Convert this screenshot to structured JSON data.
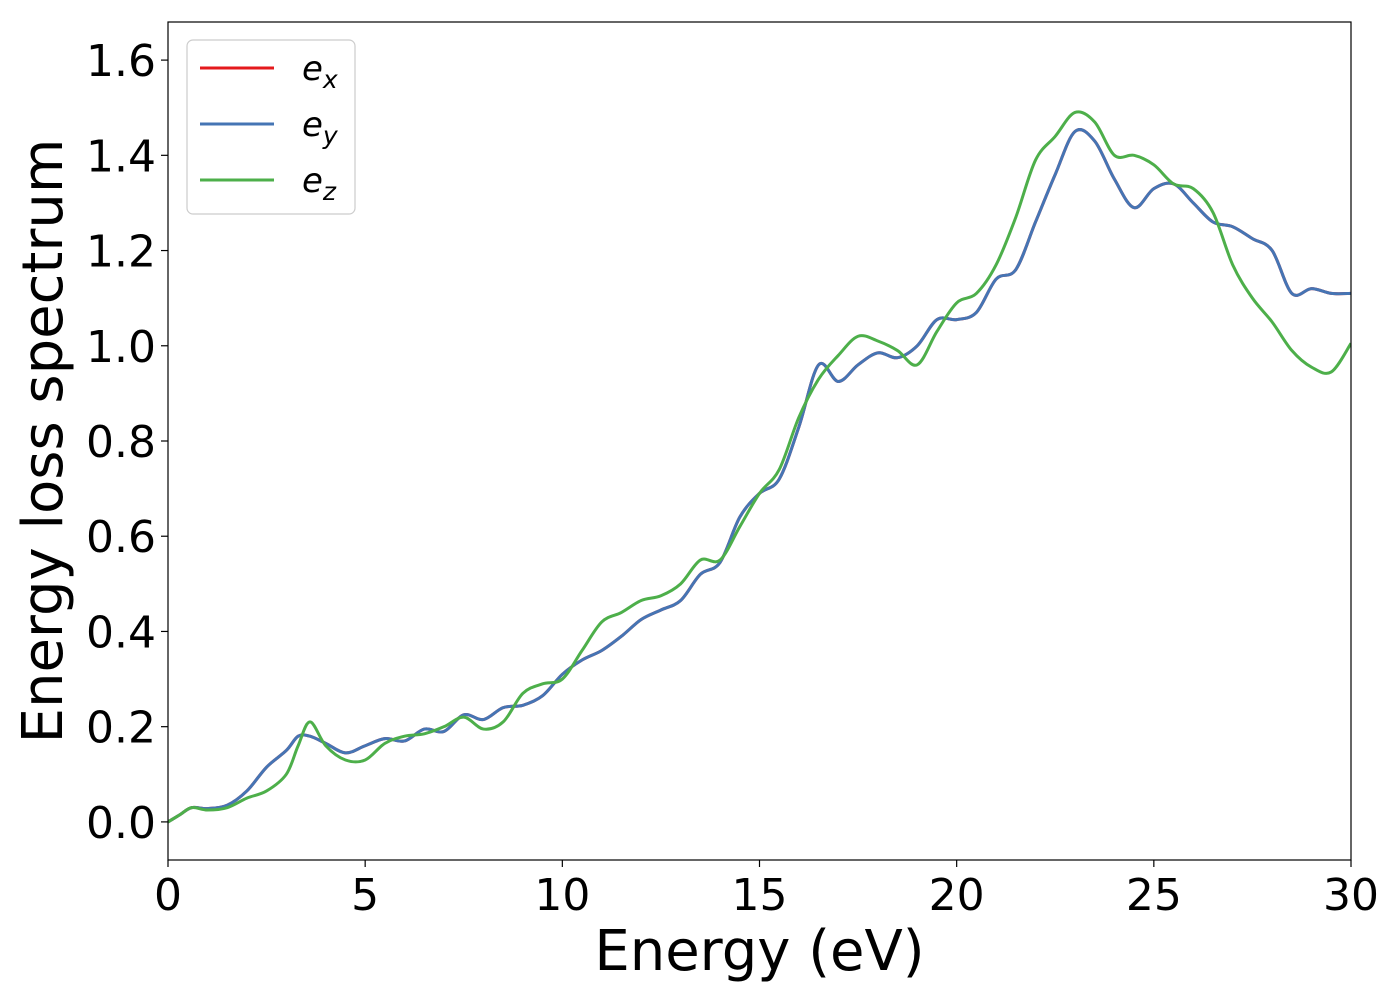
{
  "chart_data": {
    "type": "line",
    "title": "",
    "xlabel": "Energy (eV)",
    "ylabel": "Energy loss spectrum",
    "xlim": [
      0,
      30
    ],
    "ylim": [
      -0.08,
      1.68
    ],
    "xticks": [
      "0",
      "5",
      "10",
      "15",
      "20",
      "25",
      "30"
    ],
    "yticks": [
      "0.0",
      "0.2",
      "0.4",
      "0.6",
      "0.8",
      "1.0",
      "1.2",
      "1.4",
      "1.6"
    ],
    "grid": false,
    "legend_position": "top-left",
    "series": [
      {
        "name": "e_x",
        "legend_base": "e",
        "legend_sub": "x",
        "color": "#e41a1c",
        "x": [
          0,
          0.3,
          0.6,
          1.0,
          1.5,
          2.0,
          2.5,
          3.0,
          3.3,
          3.6,
          4.0,
          4.5,
          5.0,
          5.5,
          6.0,
          6.5,
          7.0,
          7.5,
          8.0,
          8.5,
          9.0,
          9.5,
          10.0,
          10.5,
          11.0,
          11.5,
          12.0,
          12.5,
          13.0,
          13.5,
          14.0,
          14.5,
          15.0,
          15.5,
          16.0,
          16.5,
          17.0,
          17.5,
          18.0,
          18.5,
          19.0,
          19.5,
          20.0,
          20.5,
          21.0,
          21.5,
          22.0,
          22.5,
          23.0,
          23.5,
          24.0,
          24.5,
          25.0,
          25.5,
          26.0,
          26.5,
          27.0,
          27.5,
          28.0,
          28.5,
          29.0,
          29.5,
          30.0
        ],
        "y": [
          0.0,
          0.015,
          0.03,
          0.028,
          0.035,
          0.065,
          0.115,
          0.15,
          0.18,
          0.18,
          0.165,
          0.145,
          0.16,
          0.175,
          0.17,
          0.195,
          0.19,
          0.225,
          0.215,
          0.24,
          0.245,
          0.265,
          0.31,
          0.34,
          0.36,
          0.39,
          0.425,
          0.445,
          0.465,
          0.52,
          0.545,
          0.64,
          0.69,
          0.72,
          0.83,
          0.96,
          0.925,
          0.96,
          0.985,
          0.975,
          1.0,
          1.055,
          1.055,
          1.07,
          1.14,
          1.16,
          1.26,
          1.36,
          1.45,
          1.43,
          1.35,
          1.29,
          1.33,
          1.34,
          1.3,
          1.26,
          1.25,
          1.225,
          1.2,
          1.11,
          1.12,
          1.11,
          1.11
        ]
      },
      {
        "name": "e_y",
        "legend_base": "e",
        "legend_sub": "y",
        "color": "#4575b4",
        "x": [
          0,
          0.3,
          0.6,
          1.0,
          1.5,
          2.0,
          2.5,
          3.0,
          3.3,
          3.6,
          4.0,
          4.5,
          5.0,
          5.5,
          6.0,
          6.5,
          7.0,
          7.5,
          8.0,
          8.5,
          9.0,
          9.5,
          10.0,
          10.5,
          11.0,
          11.5,
          12.0,
          12.5,
          13.0,
          13.5,
          14.0,
          14.5,
          15.0,
          15.5,
          16.0,
          16.5,
          17.0,
          17.5,
          18.0,
          18.5,
          19.0,
          19.5,
          20.0,
          20.5,
          21.0,
          21.5,
          22.0,
          22.5,
          23.0,
          23.5,
          24.0,
          24.5,
          25.0,
          25.5,
          26.0,
          26.5,
          27.0,
          27.5,
          28.0,
          28.5,
          29.0,
          29.5,
          30.0
        ],
        "y": [
          0.0,
          0.015,
          0.03,
          0.028,
          0.035,
          0.065,
          0.115,
          0.15,
          0.18,
          0.18,
          0.165,
          0.145,
          0.16,
          0.175,
          0.17,
          0.195,
          0.19,
          0.225,
          0.215,
          0.24,
          0.245,
          0.265,
          0.31,
          0.34,
          0.36,
          0.39,
          0.425,
          0.445,
          0.465,
          0.52,
          0.545,
          0.64,
          0.69,
          0.72,
          0.83,
          0.96,
          0.925,
          0.96,
          0.985,
          0.975,
          1.0,
          1.055,
          1.055,
          1.07,
          1.14,
          1.16,
          1.26,
          1.36,
          1.45,
          1.43,
          1.35,
          1.29,
          1.33,
          1.34,
          1.3,
          1.26,
          1.25,
          1.225,
          1.2,
          1.11,
          1.12,
          1.11,
          1.11
        ]
      },
      {
        "name": "e_z",
        "legend_base": "e",
        "legend_sub": "z",
        "color": "#4daf4a",
        "x": [
          0,
          0.3,
          0.6,
          1.0,
          1.5,
          2.0,
          2.5,
          3.0,
          3.3,
          3.6,
          4.0,
          4.5,
          5.0,
          5.5,
          6.0,
          6.5,
          7.0,
          7.5,
          8.0,
          8.5,
          9.0,
          9.5,
          10.0,
          10.5,
          11.0,
          11.5,
          12.0,
          12.5,
          13.0,
          13.5,
          14.0,
          14.5,
          15.0,
          15.5,
          16.0,
          16.5,
          17.0,
          17.5,
          18.0,
          18.5,
          19.0,
          19.5,
          20.0,
          20.5,
          21.0,
          21.5,
          22.0,
          22.5,
          23.0,
          23.5,
          24.0,
          24.5,
          25.0,
          25.5,
          26.0,
          26.5,
          27.0,
          27.5,
          28.0,
          28.5,
          29.0,
          29.5,
          30.0
        ],
        "y": [
          0.0,
          0.015,
          0.03,
          0.025,
          0.03,
          0.05,
          0.065,
          0.1,
          0.16,
          0.21,
          0.16,
          0.13,
          0.13,
          0.165,
          0.18,
          0.185,
          0.2,
          0.22,
          0.195,
          0.21,
          0.27,
          0.29,
          0.3,
          0.36,
          0.42,
          0.44,
          0.465,
          0.475,
          0.5,
          0.55,
          0.55,
          0.62,
          0.69,
          0.74,
          0.85,
          0.93,
          0.98,
          1.02,
          1.01,
          0.99,
          0.96,
          1.03,
          1.09,
          1.11,
          1.17,
          1.27,
          1.39,
          1.44,
          1.49,
          1.47,
          1.4,
          1.4,
          1.38,
          1.34,
          1.33,
          1.28,
          1.17,
          1.1,
          1.05,
          0.99,
          0.955,
          0.945,
          1.005
        ]
      }
    ]
  }
}
